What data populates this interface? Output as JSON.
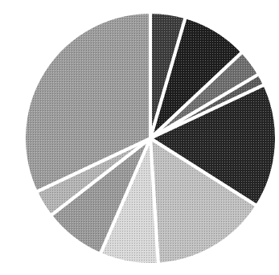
{
  "chart_data": {
    "type": "pie",
    "start_angle_deg": 0,
    "direction": "clockwise",
    "values": [
      4.5,
      8.5,
      3.5,
      1.5,
      16,
      15,
      7.5,
      8,
      3.5,
      32
    ],
    "colors": [
      "#3c3c3c",
      "#1e1e1e",
      "#6e6e6e",
      "#5a5a5a",
      "#262626",
      "#c0c0c0",
      "#d8d8d8",
      "#999999",
      "#b4b4b4",
      "#9c9c9c"
    ]
  }
}
